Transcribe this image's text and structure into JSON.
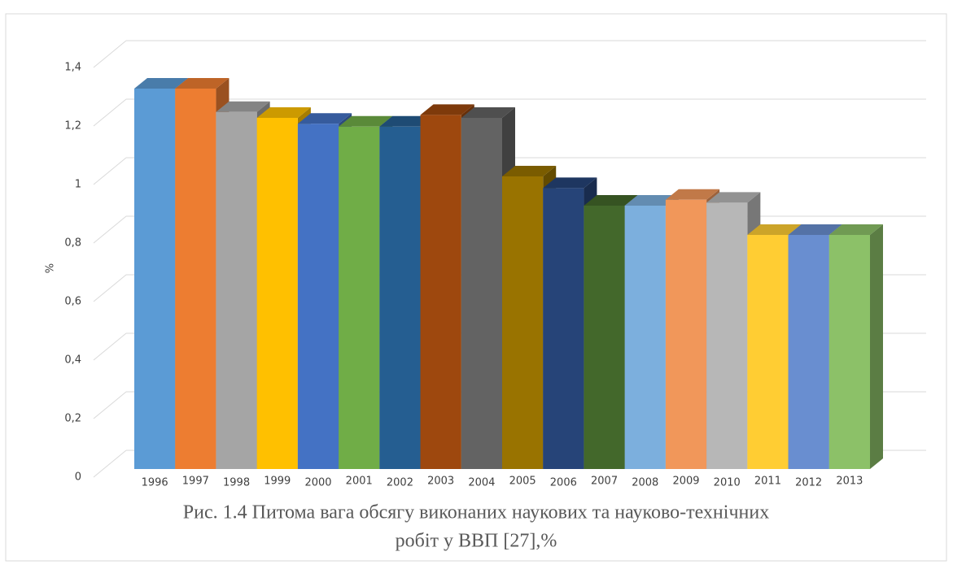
{
  "chart_data": {
    "type": "bar3d",
    "caption": [
      "Рис. 1.4 Питома вага обсягу виконаних наукових та науково-технічних",
      "робіт у ВВП [27],%"
    ],
    "y_label": "%",
    "categories": [
      "1996",
      "1997",
      "1998",
      "1999",
      "2000",
      "2001",
      "2002",
      "2003",
      "2004",
      "2005",
      "2006",
      "2007",
      "2008",
      "2009",
      "2010",
      "2011",
      "2012",
      "2013"
    ],
    "values": [
      1.3,
      1.3,
      1.22,
      1.2,
      1.18,
      1.17,
      1.17,
      1.21,
      1.2,
      1.0,
      0.96,
      0.9,
      0.9,
      0.92,
      0.91,
      0.8,
      0.8,
      0.8
    ],
    "colors": [
      "#5b9bd5",
      "#ed7d31",
      "#a5a5a5",
      "#ffc000",
      "#4472c4",
      "#70ad47",
      "#255e91",
      "#9e480e",
      "#636363",
      "#997300",
      "#264478",
      "#43682b",
      "#7cafdd",
      "#f1975a",
      "#b7b7b7",
      "#ffcd33",
      "#698ed0",
      "#8cc168"
    ],
    "ylim": [
      0,
      1.4
    ],
    "yticks": [
      0,
      {
        "value": 0.2,
        "label": "0,2"
      },
      {
        "value": 0.4,
        "label": "0,4"
      },
      {
        "value": 0.6,
        "label": "0,6"
      },
      {
        "value": 0.8,
        "label": "0,8"
      },
      1,
      {
        "value": 1.2,
        "label": "1,2"
      },
      {
        "value": 1.4,
        "label": "1,4"
      }
    ],
    "grid": true
  }
}
